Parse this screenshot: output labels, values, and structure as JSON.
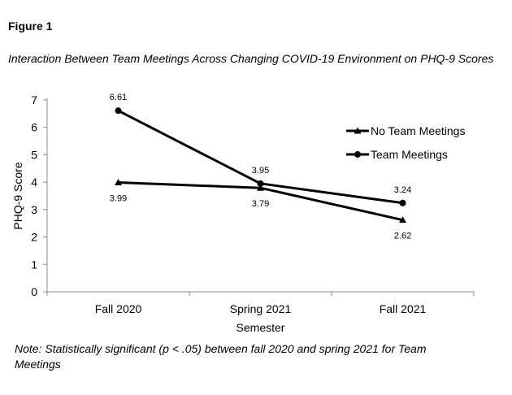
{
  "figure_label": "Figure 1",
  "figure_title": "Interaction Between Team Meetings Across Changing COVID-19 Environment on PHQ-9 Scores",
  "note": "Note: Statistically significant (p < .05) between fall 2020 and spring 2021 for Team Meetings",
  "chart_data": {
    "type": "line",
    "categories": [
      "Fall 2020",
      "Spring 2021",
      "Fall 2021"
    ],
    "xlabel": "Semester",
    "ylabel": "PHQ-9 Score",
    "ylim": [
      0,
      7
    ],
    "yticks": [
      "0",
      "1",
      "2",
      "3",
      "4",
      "5",
      "6",
      "7"
    ],
    "grid": false,
    "legend_position": "right",
    "series": [
      {
        "name": "No Team Meetings",
        "marker": "triangle",
        "values": [
          3.99,
          3.79,
          2.62
        ],
        "labels": [
          "3.99",
          "3.79",
          "2.62"
        ],
        "label_side": [
          "below",
          "below",
          "below"
        ]
      },
      {
        "name": "Team Meetings",
        "marker": "circle",
        "values": [
          6.61,
          3.95,
          3.24
        ],
        "labels": [
          "6.61",
          "3.95",
          "3.24"
        ],
        "label_side": [
          "above",
          "above",
          "above"
        ]
      }
    ],
    "line_color": "#000000"
  }
}
